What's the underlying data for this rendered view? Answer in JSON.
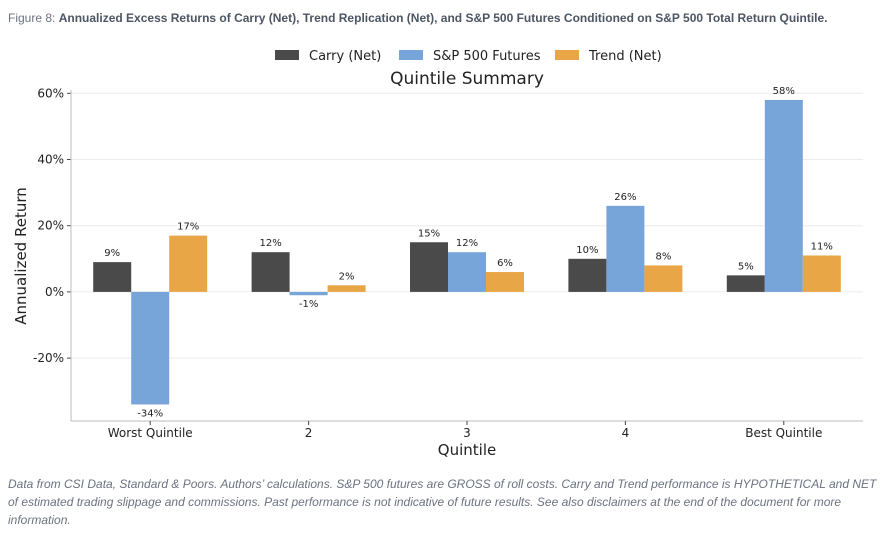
{
  "figure": {
    "label": "Figure 8:",
    "title": "Annualized Excess Returns of Carry (Net), Trend Replication (Net), and S&P 500 Futures Conditioned on S&P 500 Total Return Quintile."
  },
  "footnote": "Data from CSI Data, Standard & Poors. Authors’ calculations. S&P 500 futures are GROSS of roll costs. Carry and Trend performance is HYPOTHETICAL and NET of estimated trading slippage and commissions. Past performance is not indicative of future results. See also disclaimers at the end of the document for more information.",
  "chart_data": {
    "type": "bar",
    "title": "Quintile Summary",
    "xlabel": "Quintile",
    "ylabel": "Annualized Return",
    "categories": [
      "Worst Quintile",
      "2",
      "3",
      "4",
      "Best Quintile"
    ],
    "series": [
      {
        "name": "Carry (Net)",
        "color": "#4a4a4a",
        "values": [
          9,
          12,
          15,
          10,
          5
        ],
        "labels": [
          "9%",
          "12%",
          "15%",
          "10%",
          "5%"
        ]
      },
      {
        "name": "S&P 500 Futures",
        "color": "#77a5d9",
        "values": [
          -34,
          -1,
          12,
          26,
          58
        ],
        "labels": [
          "-34%",
          "-1%",
          "12%",
          "26%",
          "58%"
        ]
      },
      {
        "name": "Trend (Net)",
        "color": "#e8a646",
        "values": [
          17,
          2,
          6,
          8,
          11
        ],
        "labels": [
          "17%",
          "2%",
          "6%",
          "8%",
          "11%"
        ]
      }
    ],
    "yticks": [
      -20,
      0,
      20,
      40,
      60
    ],
    "ytick_labels": [
      "-20%",
      "0%",
      "20%",
      "40%",
      "60%"
    ],
    "ylim": [
      -39,
      61
    ],
    "grid": true,
    "legend_position": "top-center"
  }
}
